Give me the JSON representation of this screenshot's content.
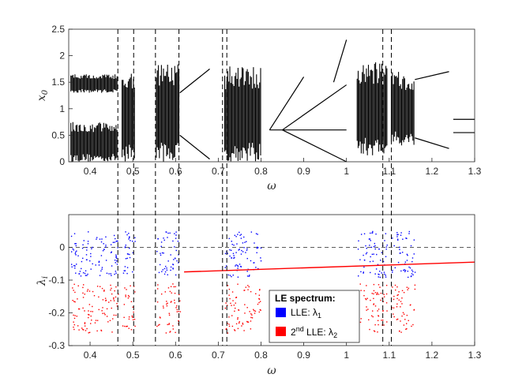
{
  "chart_data": [
    {
      "type": "scatter",
      "title": "",
      "xlabel": "ω",
      "ylabel": "x",
      "ylabel_sub": "0",
      "xlim": [
        0.35,
        1.3
      ],
      "ylim": [
        0,
        2.5
      ],
      "xticks": [
        "0.4",
        "0.5",
        "0.6",
        "0.7",
        "0.8",
        "0.9",
        "1",
        "1.1",
        "1.2",
        "1.3"
      ],
      "yticks": [
        "0",
        "0.5",
        "1",
        "1.5",
        "2",
        "2.5"
      ],
      "chaotic_bands": [
        {
          "x": [
            0.355,
            0.465
          ],
          "y": [
            0.0,
            0.75
          ]
        },
        {
          "x": [
            0.355,
            0.465
          ],
          "y": [
            1.3,
            1.65
          ]
        },
        {
          "x": [
            0.475,
            0.505
          ],
          "y": [
            0.0,
            1.8
          ]
        },
        {
          "x": [
            0.555,
            0.61
          ],
          "y": [
            0.0,
            1.85
          ]
        },
        {
          "x": [
            0.715,
            0.8
          ],
          "y": [
            0.0,
            1.8
          ]
        },
        {
          "x": [
            1.025,
            1.095
          ],
          "y": [
            0.1,
            1.9
          ]
        },
        {
          "x": [
            1.105,
            1.16
          ],
          "y": [
            0.3,
            1.7
          ]
        }
      ],
      "periodic_branches": [
        {
          "x": [
            0.61,
            0.68
          ],
          "y": [
            0.5,
            0.05
          ]
        },
        {
          "x": [
            0.61,
            0.68
          ],
          "y": [
            1.3,
            1.75
          ]
        },
        {
          "x": [
            0.82,
            1.0
          ],
          "y": [
            0.6,
            0.6
          ]
        },
        {
          "x": [
            0.85,
            1.0
          ],
          "y": [
            0.6,
            1.45
          ]
        },
        {
          "x": [
            0.85,
            1.0
          ],
          "y": [
            0.6,
            0.0
          ]
        },
        {
          "x": [
            0.82,
            0.9
          ],
          "y": [
            0.6,
            1.6
          ]
        },
        {
          "x": [
            0.97,
            1.0
          ],
          "y": [
            1.5,
            2.3
          ]
        },
        {
          "x": [
            1.16,
            1.24
          ],
          "y": [
            1.55,
            1.7
          ]
        },
        {
          "x": [
            1.16,
            1.24
          ],
          "y": [
            0.45,
            0.25
          ]
        },
        {
          "x": [
            1.25,
            1.3
          ],
          "y": [
            0.8,
            0.8
          ]
        },
        {
          "x": [
            1.25,
            1.3
          ],
          "y": [
            0.55,
            0.55
          ]
        }
      ]
    },
    {
      "type": "scatter",
      "title": "",
      "xlabel": "ω",
      "ylabel": "λ",
      "ylabel_sub": "i",
      "xlim": [
        0.35,
        1.3
      ],
      "ylim": [
        -0.3,
        0.1
      ],
      "xticks": [
        "0.4",
        "0.5",
        "0.6",
        "0.7",
        "0.8",
        "0.9",
        "1",
        "1.1",
        "1.2",
        "1.3"
      ],
      "yticks": [
        "-0.3",
        "-0.2",
        "-0.1",
        "0"
      ],
      "zero_line": true,
      "legend": {
        "title": "LE spectrum:",
        "entries": [
          {
            "label": "LLE: λ",
            "sub": "1",
            "sup": "",
            "color": "#0000ff"
          },
          {
            "label": "LLE: λ",
            "pre_sup": "nd",
            "pre": "2",
            "sub": "2",
            "color": "#ff0000"
          }
        ],
        "entry1_text": "LLE: λ",
        "entry1_sub": "1",
        "entry2_pre": "2",
        "entry2_sup": "nd",
        "entry2_text": " LLE: λ",
        "entry2_sub": "2"
      },
      "series": [
        {
          "name": "λ1",
          "color": "#0000ff",
          "chaotic_ranges": [
            [
              0.355,
              0.465
            ],
            [
              0.475,
              0.505
            ],
            [
              0.555,
              0.61
            ],
            [
              0.715,
              0.8
            ],
            [
              1.025,
              1.095
            ],
            [
              1.105,
              1.16
            ]
          ],
          "chaotic_level": 0.05,
          "periodic_level": -0.06
        },
        {
          "name": "λ2",
          "color": "#ff0000",
          "chaotic_ranges": [
            [
              0.355,
              0.465
            ],
            [
              0.475,
              0.505
            ],
            [
              0.555,
              0.61
            ],
            [
              0.715,
              0.8
            ],
            [
              1.025,
              1.095
            ],
            [
              1.105,
              1.16
            ]
          ],
          "chaotic_level": -0.2,
          "periodic_line": {
            "x": [
              0.62,
              1.3
            ],
            "y": [
              -0.075,
              -0.045
            ]
          }
        }
      ]
    }
  ],
  "dashed_lines_x": [
    0.465,
    0.502,
    0.553,
    0.608,
    0.71,
    0.72,
    1.085,
    1.105
  ],
  "colors": {
    "chaos": "#000000",
    "lle": "#0000ff",
    "lle2": "#ff0000",
    "axis": "#262626"
  }
}
